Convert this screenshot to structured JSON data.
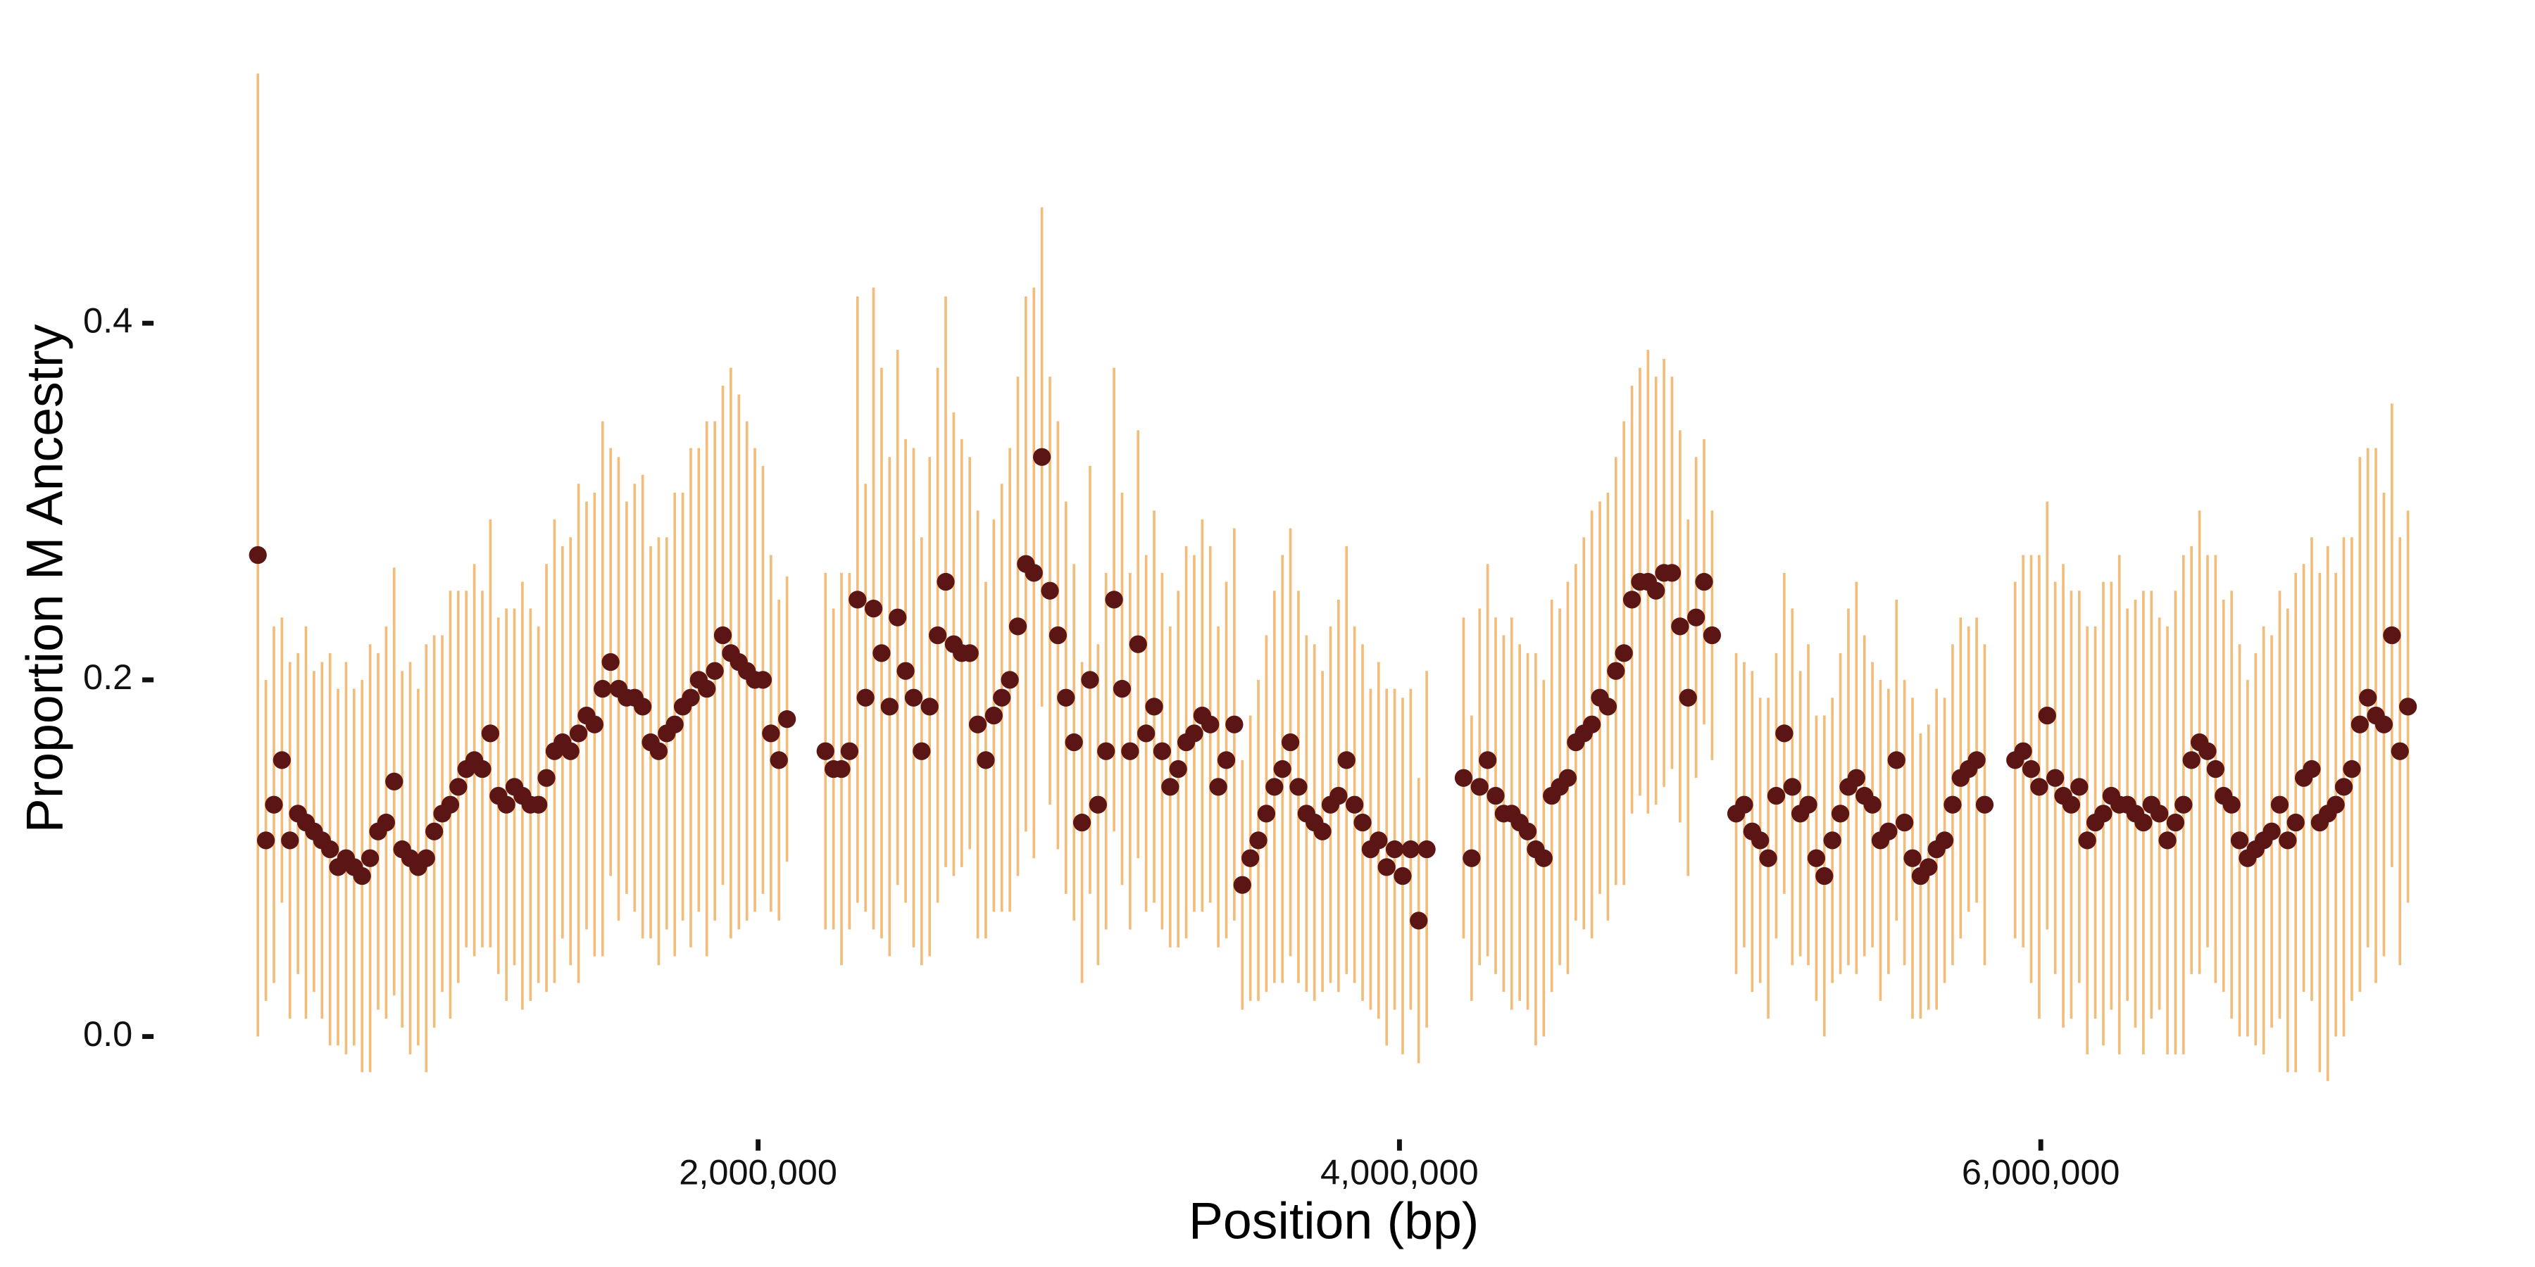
{
  "chart_data": {
    "type": "scatter",
    "xlabel": "Position (bp)",
    "ylabel": "Proportion M Ancestry",
    "xlim": [
      140000,
      7400000
    ],
    "ylim": [
      -0.035,
      0.545
    ],
    "xticks": [
      {
        "value": 2000000,
        "label": "2,000,000"
      },
      {
        "value": 4000000,
        "label": "4,000,000"
      },
      {
        "value": 6000000,
        "label": "6,000,000"
      }
    ],
    "yticks": [
      {
        "value": 0,
        "label": "0.0"
      },
      0.2,
      0.4
    ],
    "point_color": "#5c1515",
    "error_color": "#f2bd7a",
    "x": [
      440000,
      465000,
      490000,
      515000,
      540000,
      565000,
      590000,
      615000,
      640000,
      665000,
      690000,
      715000,
      740000,
      765000,
      790000,
      815000,
      840000,
      865000,
      890000,
      915000,
      940000,
      965000,
      990000,
      1015000,
      1040000,
      1065000,
      1090000,
      1115000,
      1140000,
      1165000,
      1190000,
      1215000,
      1240000,
      1265000,
      1290000,
      1315000,
      1340000,
      1365000,
      1390000,
      1415000,
      1440000,
      1465000,
      1490000,
      1515000,
      1540000,
      1565000,
      1590000,
      1615000,
      1640000,
      1665000,
      1690000,
      1715000,
      1740000,
      1765000,
      1790000,
      1815000,
      1840000,
      1865000,
      1890000,
      1915000,
      1940000,
      1965000,
      1990000,
      2015000,
      2040000,
      2065000,
      2090000,
      2210000,
      2235000,
      2260000,
      2285000,
      2310000,
      2335000,
      2360000,
      2385000,
      2410000,
      2435000,
      2460000,
      2485000,
      2510000,
      2535000,
      2560000,
      2585000,
      2610000,
      2635000,
      2660000,
      2685000,
      2710000,
      2735000,
      2760000,
      2785000,
      2810000,
      2835000,
      2860000,
      2885000,
      2910000,
      2935000,
      2960000,
      2985000,
      3010000,
      3035000,
      3060000,
      3085000,
      3110000,
      3135000,
      3160000,
      3185000,
      3210000,
      3235000,
      3260000,
      3285000,
      3310000,
      3335000,
      3360000,
      3385000,
      3410000,
      3435000,
      3460000,
      3485000,
      3510000,
      3535000,
      3560000,
      3585000,
      3610000,
      3635000,
      3660000,
      3685000,
      3710000,
      3735000,
      3760000,
      3785000,
      3810000,
      3835000,
      3860000,
      3885000,
      3910000,
      3935000,
      3960000,
      3985000,
      4010000,
      4035000,
      4060000,
      4085000,
      4200000,
      4225000,
      4250000,
      4275000,
      4300000,
      4325000,
      4350000,
      4375000,
      4400000,
      4425000,
      4450000,
      4475000,
      4500000,
      4525000,
      4550000,
      4575000,
      4600000,
      4625000,
      4650000,
      4675000,
      4700000,
      4725000,
      4750000,
      4775000,
      4800000,
      4825000,
      4850000,
      4875000,
      4900000,
      4925000,
      4950000,
      4975000,
      5050000,
      5075000,
      5100000,
      5125000,
      5150000,
      5175000,
      5200000,
      5225000,
      5250000,
      5275000,
      5300000,
      5325000,
      5350000,
      5375000,
      5400000,
      5425000,
      5450000,
      5475000,
      5500000,
      5525000,
      5550000,
      5575000,
      5600000,
      5625000,
      5650000,
      5675000,
      5700000,
      5725000,
      5750000,
      5775000,
      5800000,
      5825000,
      5920000,
      5945000,
      5970000,
      5995000,
      6020000,
      6045000,
      6070000,
      6095000,
      6120000,
      6145000,
      6170000,
      6195000,
      6220000,
      6245000,
      6270000,
      6295000,
      6320000,
      6345000,
      6370000,
      6395000,
      6420000,
      6445000,
      6470000,
      6495000,
      6520000,
      6545000,
      6570000,
      6595000,
      6620000,
      6645000,
      6670000,
      6695000,
      6720000,
      6745000,
      6770000,
      6795000,
      6820000,
      6845000,
      6870000,
      6895000,
      6920000,
      6945000,
      6970000,
      6995000,
      7020000,
      7045000,
      7070000,
      7095000,
      7120000,
      7145000
    ],
    "values": [
      0.27,
      0.11,
      0.13,
      0.155,
      0.11,
      0.125,
      0.12,
      0.115,
      0.11,
      0.105,
      0.095,
      0.1,
      0.095,
      0.09,
      0.1,
      0.115,
      0.12,
      0.143,
      0.105,
      0.1,
      0.095,
      0.1,
      0.115,
      0.125,
      0.13,
      0.14,
      0.15,
      0.155,
      0.15,
      0.17,
      0.135,
      0.13,
      0.14,
      0.135,
      0.13,
      0.13,
      0.145,
      0.16,
      0.165,
      0.16,
      0.17,
      0.18,
      0.175,
      0.195,
      0.21,
      0.195,
      0.19,
      0.19,
      0.185,
      0.165,
      0.16,
      0.17,
      0.175,
      0.185,
      0.19,
      0.2,
      0.195,
      0.205,
      0.225,
      0.215,
      0.21,
      0.205,
      0.2,
      0.2,
      0.17,
      0.155,
      0.178,
      0.16,
      0.15,
      0.15,
      0.16,
      0.245,
      0.19,
      0.24,
      0.215,
      0.185,
      0.235,
      0.205,
      0.19,
      0.16,
      0.185,
      0.225,
      0.255,
      0.22,
      0.215,
      0.215,
      0.175,
      0.155,
      0.18,
      0.19,
      0.2,
      0.23,
      0.265,
      0.26,
      0.325,
      0.25,
      0.225,
      0.19,
      0.165,
      0.12,
      0.2,
      0.13,
      0.16,
      0.245,
      0.195,
      0.16,
      0.22,
      0.17,
      0.185,
      0.16,
      0.14,
      0.15,
      0.165,
      0.17,
      0.18,
      0.175,
      0.14,
      0.155,
      0.175,
      0.085,
      0.1,
      0.11,
      0.125,
      0.14,
      0.15,
      0.165,
      0.14,
      0.125,
      0.12,
      0.115,
      0.13,
      0.135,
      0.155,
      0.13,
      0.12,
      0.105,
      0.11,
      0.095,
      0.105,
      0.09,
      0.105,
      0.065,
      0.105,
      0.145,
      0.1,
      0.14,
      0.155,
      0.135,
      0.125,
      0.125,
      0.12,
      0.115,
      0.105,
      0.1,
      0.135,
      0.14,
      0.145,
      0.165,
      0.17,
      0.175,
      0.19,
      0.185,
      0.205,
      0.215,
      0.245,
      0.255,
      0.255,
      0.25,
      0.26,
      0.26,
      0.23,
      0.19,
      0.235,
      0.255,
      0.225,
      0.125,
      0.13,
      0.115,
      0.11,
      0.1,
      0.135,
      0.17,
      0.14,
      0.125,
      0.13,
      0.1,
      0.09,
      0.11,
      0.125,
      0.14,
      0.145,
      0.135,
      0.13,
      0.11,
      0.115,
      0.155,
      0.12,
      0.1,
      0.09,
      0.095,
      0.105,
      0.11,
      0.13,
      0.145,
      0.15,
      0.155,
      0.13,
      0.155,
      0.16,
      0.15,
      0.14,
      0.18,
      0.145,
      0.135,
      0.13,
      0.14,
      0.11,
      0.12,
      0.125,
      0.135,
      0.13,
      0.13,
      0.125,
      0.12,
      0.13,
      0.125,
      0.11,
      0.12,
      0.13,
      0.155,
      0.165,
      0.16,
      0.15,
      0.135,
      0.13,
      0.11,
      0.1,
      0.105,
      0.11,
      0.115,
      0.13,
      0.11,
      0.12,
      0.145,
      0.15,
      0.12,
      0.125,
      0.13,
      0.14,
      0.15,
      0.175,
      0.19,
      0.18,
      0.175,
      0.225,
      0.16,
      0.185
    ],
    "errors": [
      0.27,
      0.09,
      0.1,
      0.08,
      0.1,
      0.09,
      0.11,
      0.09,
      0.1,
      0.11,
      0.1,
      0.11,
      0.1,
      0.11,
      0.12,
      0.1,
      0.11,
      0.12,
      0.1,
      0.11,
      0.1,
      0.12,
      0.11,
      0.1,
      0.12,
      0.11,
      0.1,
      0.11,
      0.1,
      0.12,
      0.1,
      0.11,
      0.1,
      0.12,
      0.11,
      0.1,
      0.12,
      0.13,
      0.11,
      0.12,
      0.14,
      0.12,
      0.13,
      0.15,
      0.12,
      0.13,
      0.11,
      0.12,
      0.13,
      0.11,
      0.12,
      0.11,
      0.13,
      0.12,
      0.14,
      0.13,
      0.15,
      0.14,
      0.14,
      0.16,
      0.15,
      0.14,
      0.13,
      0.12,
      0.1,
      0.09,
      0.08,
      0.1,
      0.09,
      0.11,
      0.1,
      0.17,
      0.12,
      0.18,
      0.16,
      0.14,
      0.15,
      0.13,
      0.14,
      0.12,
      0.14,
      0.15,
      0.16,
      0.13,
      0.12,
      0.11,
      0.12,
      0.1,
      0.11,
      0.12,
      0.13,
      0.14,
      0.15,
      0.16,
      0.14,
      0.12,
      0.12,
      0.11,
      0.1,
      0.09,
      0.12,
      0.09,
      0.1,
      0.13,
      0.11,
      0.1,
      0.12,
      0.1,
      0.11,
      0.1,
      0.09,
      0.1,
      0.11,
      0.1,
      0.11,
      0.1,
      0.09,
      0.1,
      0.11,
      0.07,
      0.08,
      0.09,
      0.1,
      0.11,
      0.12,
      0.12,
      0.11,
      0.1,
      0.1,
      0.09,
      0.1,
      0.11,
      0.12,
      0.1,
      0.1,
      0.09,
      0.1,
      0.1,
      0.09,
      0.1,
      0.09,
      0.08,
      0.1,
      0.09,
      0.08,
      0.1,
      0.11,
      0.1,
      0.1,
      0.11,
      0.1,
      0.1,
      0.11,
      0.1,
      0.11,
      0.1,
      0.11,
      0.1,
      0.11,
      0.12,
      0.11,
      0.12,
      0.12,
      0.13,
      0.12,
      0.12,
      0.13,
      0.12,
      0.12,
      0.11,
      0.11,
      0.1,
      0.09,
      0.08,
      0.07,
      0.09,
      0.08,
      0.09,
      0.08,
      0.09,
      0.08,
      0.09,
      0.1,
      0.08,
      0.09,
      0.08,
      0.09,
      0.08,
      0.09,
      0.1,
      0.11,
      0.09,
      0.08,
      0.09,
      0.08,
      0.09,
      0.08,
      0.09,
      0.08,
      0.08,
      0.09,
      0.08,
      0.09,
      0.09,
      0.08,
      0.08,
      0.09,
      0.1,
      0.11,
      0.12,
      0.13,
      0.12,
      0.11,
      0.13,
      0.12,
      0.11,
      0.12,
      0.11,
      0.13,
      0.12,
      0.14,
      0.11,
      0.12,
      0.13,
      0.12,
      0.11,
      0.12,
      0.13,
      0.14,
      0.12,
      0.13,
      0.11,
      0.12,
      0.11,
      0.12,
      0.11,
      0.1,
      0.11,
      0.12,
      0.11,
      0.12,
      0.13,
      0.14,
      0.12,
      0.13,
      0.14,
      0.15,
      0.13,
      0.14,
      0.13,
      0.15,
      0.14,
      0.15,
      0.13,
      0.13,
      0.12,
      0.11
    ]
  }
}
